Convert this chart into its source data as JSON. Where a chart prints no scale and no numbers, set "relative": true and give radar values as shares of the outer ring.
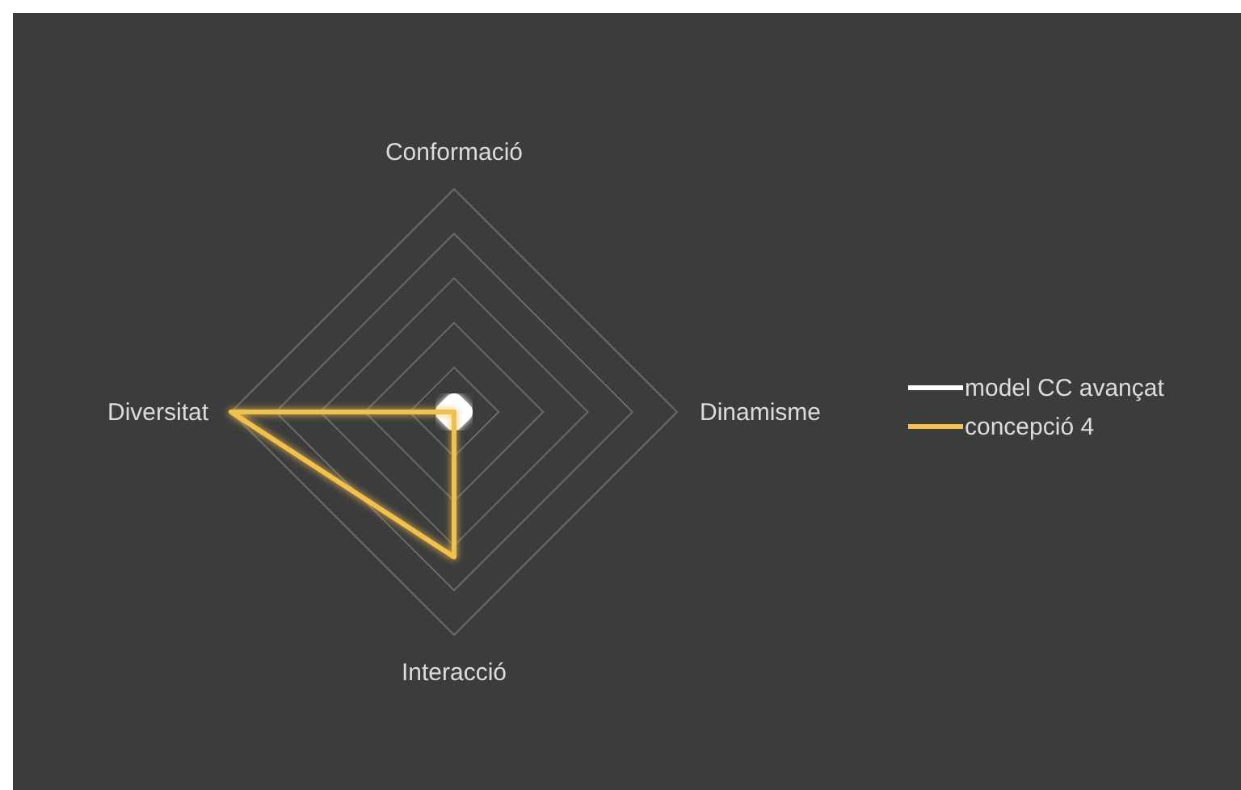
{
  "chart_data": {
    "type": "radar",
    "relative": true,
    "categories": [
      "Conformació",
      "Dinamisme",
      "Interacció",
      "Diversitat"
    ],
    "series": [
      {
        "name": "model CC avançat",
        "color": "#ffffff",
        "values": [
          0.04,
          0.04,
          0.04,
          0.04
        ]
      },
      {
        "name": "concepció 4",
        "color": "#f2c14e",
        "values": [
          0,
          0,
          0.65,
          1
        ]
      }
    ],
    "legend": "right",
    "marker": "none",
    "line_style": "solid",
    "grid": true
  }
}
